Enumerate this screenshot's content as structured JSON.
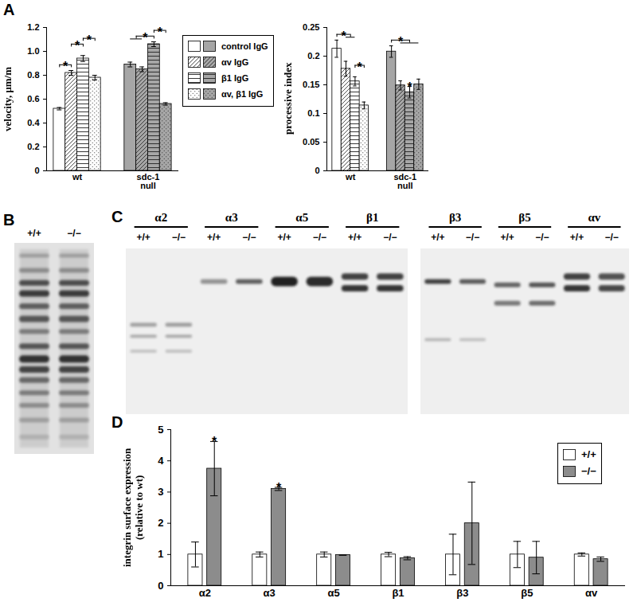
{
  "chart_data": [
    {
      "panel": "A",
      "type": "bar",
      "ylabel": "velocity, μm/m",
      "categories": [
        "wt",
        "sdc-1 null"
      ],
      "colors": [
        "#ffffff",
        "#a6a6a6"
      ],
      "series": [
        {
          "name": "control IgG",
          "values": [
            0.52,
            0.89
          ],
          "errors": [
            0.01,
            0.02
          ]
        },
        {
          "name": "αv IgG",
          "values": [
            0.82,
            0.85
          ],
          "errors": [
            0.02,
            0.02
          ]
        },
        {
          "name": "β1 IgG",
          "values": [
            0.94,
            1.06
          ],
          "errors": [
            0.025,
            0.02
          ]
        },
        {
          "name": "αv, β1 IgG",
          "values": [
            0.78,
            0.56
          ],
          "errors": [
            0.02,
            0.01
          ]
        }
      ],
      "ylim": [
        0,
        1.2
      ],
      "yticks": [
        0,
        0.2,
        0.4,
        0.6,
        0.8,
        {
          "value": 1,
          "label": "1.0"
        },
        1.2
      ],
      "legend": "right",
      "significance": [
        {
          "category": "wt",
          "from": "control IgG",
          "to": "αv IgG",
          "label": "*"
        },
        {
          "category": "wt",
          "from": "αv IgG",
          "to": "β1 IgG",
          "label": "*"
        },
        {
          "category": "wt",
          "from": "β1 IgG",
          "to": "αv, β1 IgG",
          "label": "*"
        },
        {
          "category": "sdc-1 null",
          "from": [
            "control IgG",
            "αv IgG"
          ],
          "to": "β1 IgG",
          "label": "*"
        },
        {
          "category": "sdc-1 null",
          "from": "β1 IgG",
          "to": "αv, β1 IgG",
          "label": "*"
        }
      ]
    },
    {
      "type": "bar",
      "ylabel": "processive index",
      "categories": [
        "wt",
        "sdc-1 null"
      ],
      "colors": [
        "#ffffff",
        "#a6a6a6"
      ],
      "series": [
        {
          "name": "control IgG",
          "values": [
            0.213,
            0.208
          ],
          "errors": [
            0.015,
            0.01
          ]
        },
        {
          "name": "αv IgG",
          "values": [
            0.178,
            0.149
          ],
          "errors": [
            0.013,
            0.008
          ]
        },
        {
          "name": "β1 IgG",
          "values": [
            0.156,
            0.137
          ],
          "errors": [
            0.008,
            0.01
          ]
        },
        {
          "name": "αv, β1 IgG",
          "values": [
            0.114,
            0.151
          ],
          "errors": [
            0.006,
            0.009
          ]
        }
      ],
      "ylim": [
        0,
        0.25
      ],
      "yticks": [
        0,
        0.05,
        0.1,
        0.15,
        0.2,
        0.25
      ],
      "significance": [
        {
          "category": "wt",
          "from": "control IgG",
          "to": [
            "αv IgG",
            "β1 IgG"
          ],
          "label": "*"
        },
        {
          "category": "wt",
          "from": "β1 IgG",
          "to": "αv, β1 IgG",
          "label": "*"
        },
        {
          "category": "sdc-1 null",
          "from": "control IgG",
          "to": [
            "αv IgG",
            "β1 IgG",
            "αv, β1 IgG"
          ],
          "label": "*"
        },
        {
          "category": "sdc-1 null",
          "from": "β1 IgG",
          "to": "β1 IgG",
          "label": "*"
        }
      ]
    },
    {
      "panel": "D",
      "type": "bar",
      "ylabel": "integrin surface expression (relative to wt)",
      "categories": [
        "α2",
        "α3",
        "α5",
        "β1",
        "β3",
        "β5",
        "αv"
      ],
      "series": [
        {
          "name": "+/+",
          "color": "#ffffff",
          "values": [
            1,
            1,
            1,
            1,
            1,
            1,
            1
          ],
          "errors": [
            0.4,
            0.08,
            0.08,
            0.07,
            0.65,
            0.42,
            0.05
          ]
        },
        {
          "name": "−/−",
          "color": "#8c8c8c",
          "values": [
            3.75,
            3.1,
            0.98,
            0.88,
            2.0,
            0.9,
            0.85
          ],
          "errors": [
            0.87,
            0.05,
            0.0,
            0.05,
            1.32,
            0.52,
            0.07
          ]
        }
      ],
      "ylim": [
        0,
        5
      ],
      "yticks": [
        0,
        1,
        2,
        3,
        4,
        5
      ],
      "legend": "upper right",
      "significance": [
        {
          "category": "α2",
          "from": "−/−",
          "to": "−/−",
          "label": "*"
        },
        {
          "category": "α3",
          "from": "−/−",
          "to": "−/−",
          "label": "*"
        }
      ]
    }
  ],
  "gels": [
    {
      "panel": "B",
      "lanes": [
        "+/+",
        "−/−"
      ]
    },
    {
      "panel": "C",
      "images": [
        {
          "groups": [
            {
              "label": "α2",
              "lanes": [
                "+/+",
                "−/−"
              ]
            },
            {
              "label": "α3",
              "lanes": [
                "+/+",
                "−/−"
              ]
            },
            {
              "label": "α5",
              "lanes": [
                "+/+",
                "−/−"
              ]
            },
            {
              "label": "β1",
              "lanes": [
                "+/+",
                "−/−"
              ]
            }
          ]
        },
        {
          "groups": [
            {
              "label": "β3",
              "lanes": [
                "+/+",
                "−/−"
              ]
            },
            {
              "label": "β5",
              "lanes": [
                "+/+",
                "−/−"
              ]
            },
            {
              "label": "αv",
              "lanes": [
                "+/+",
                "−/−"
              ]
            }
          ]
        }
      ]
    }
  ]
}
